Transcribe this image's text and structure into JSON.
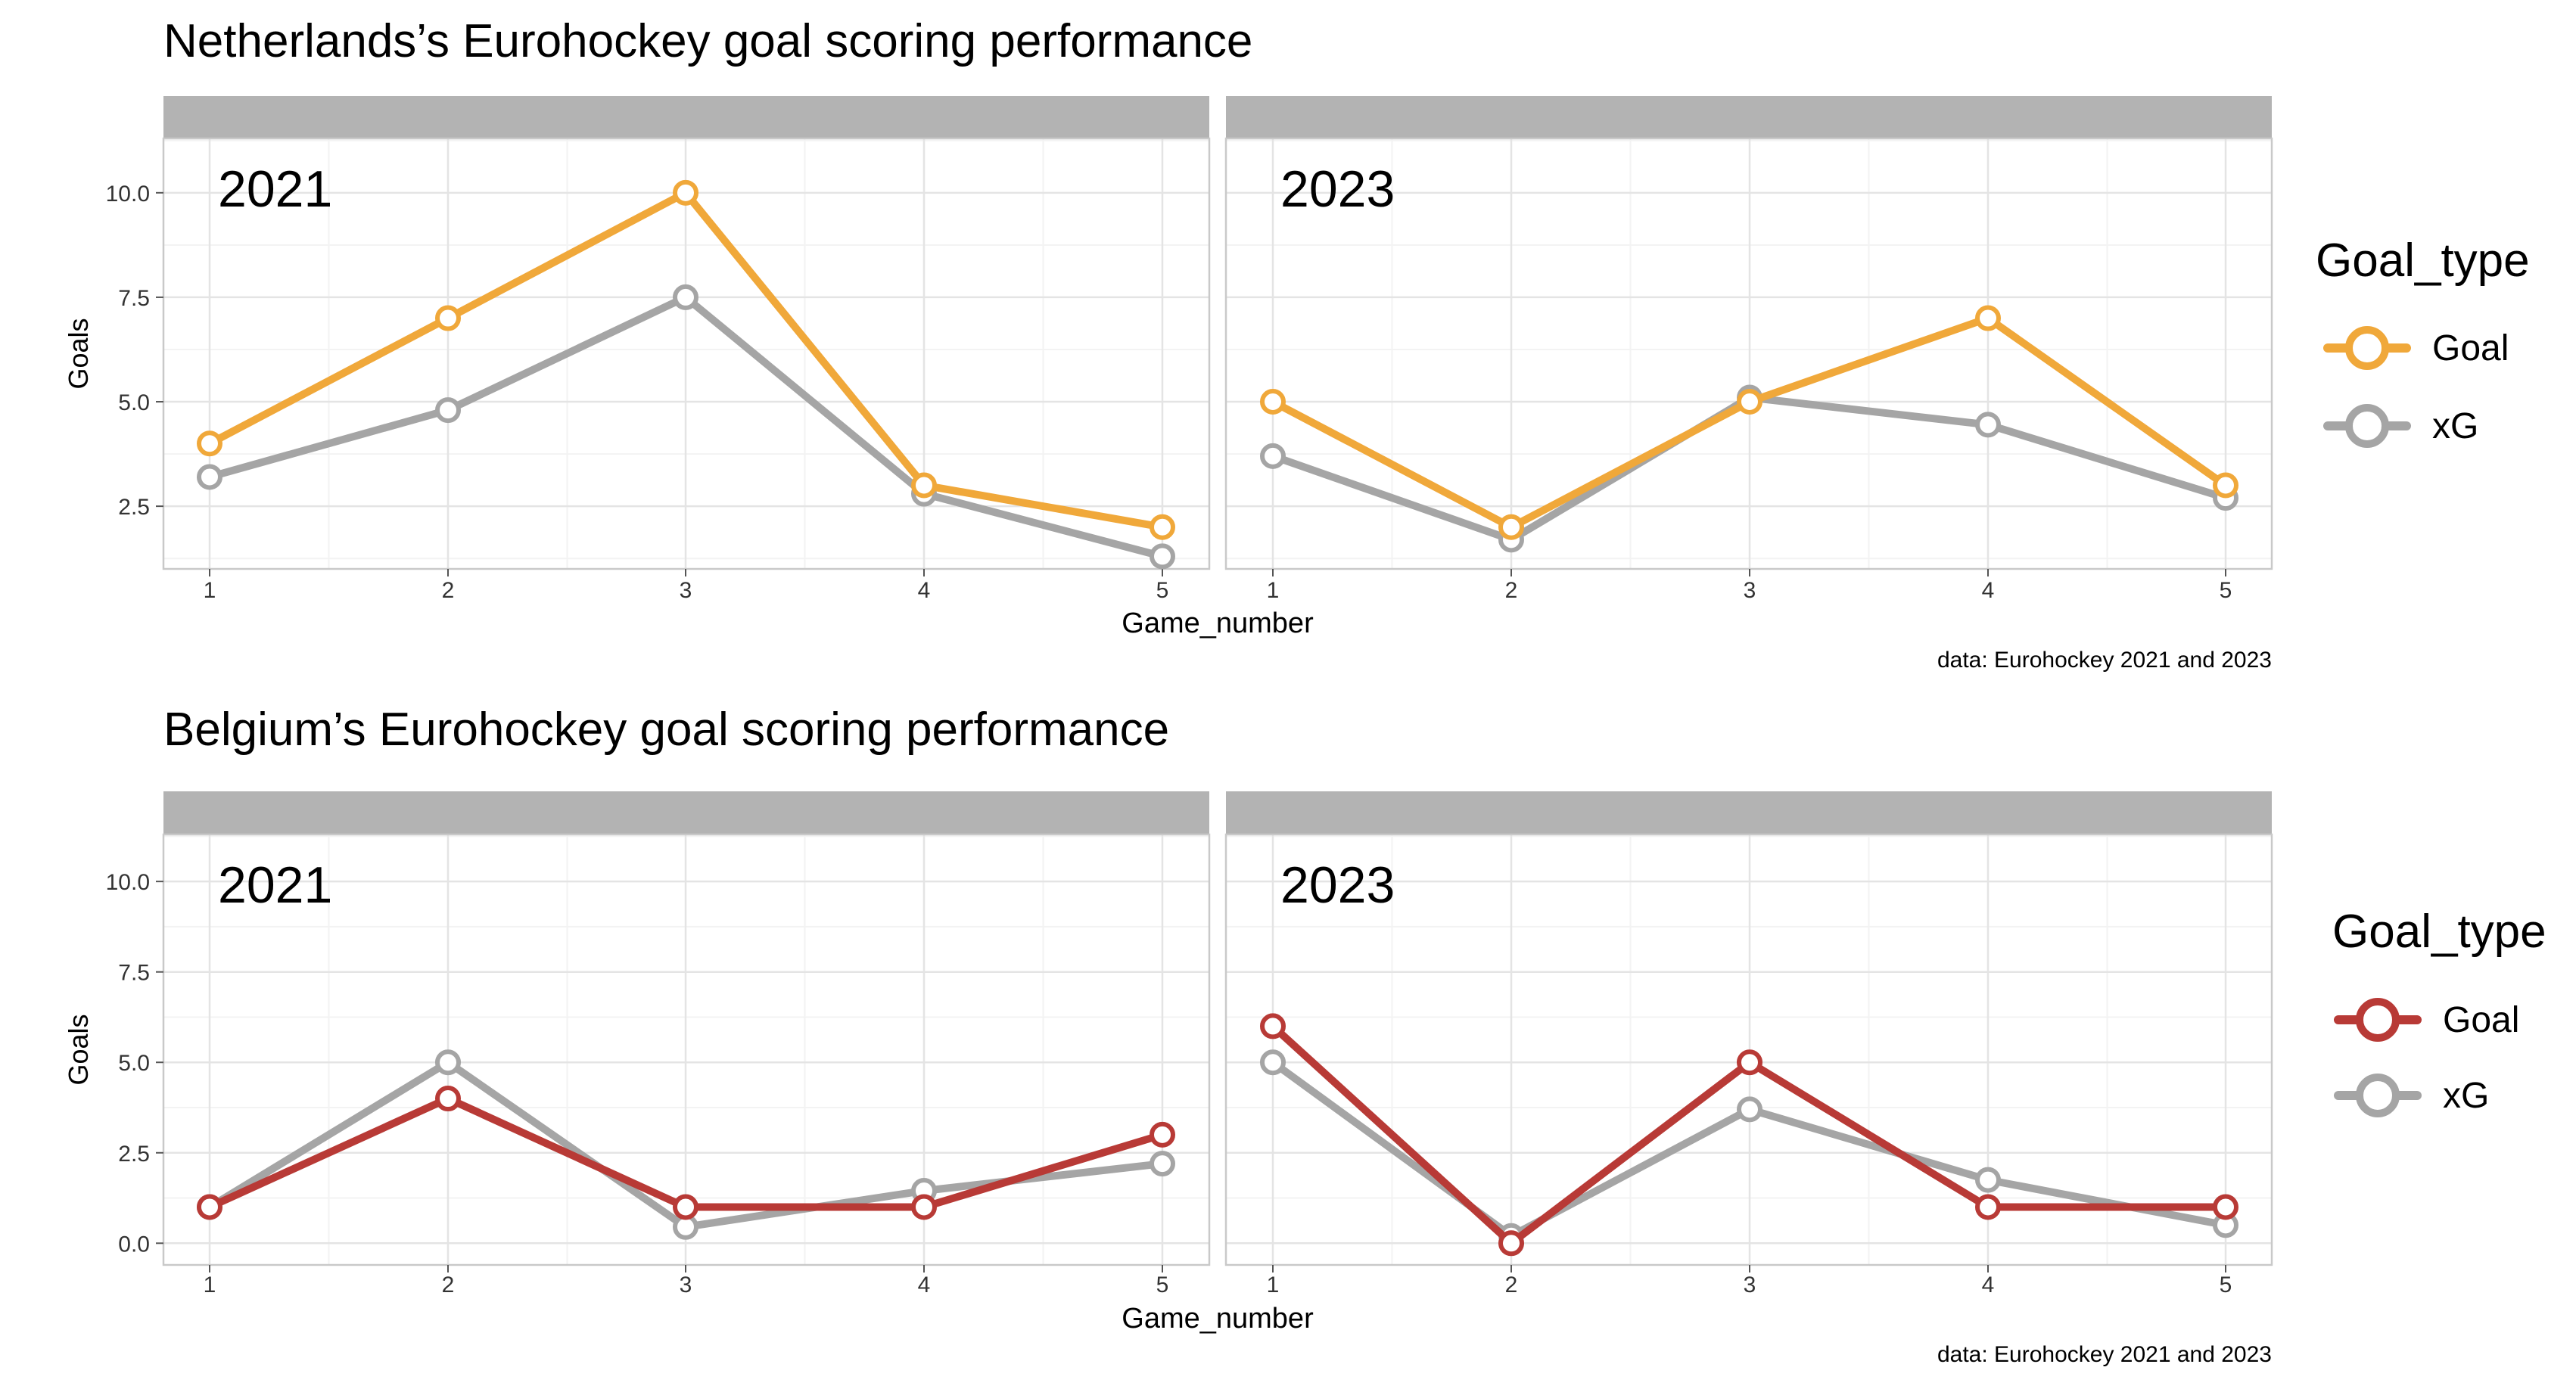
{
  "chart_data": [
    {
      "type": "line",
      "title": "Netherlands’s Eurohockey goal scoring performance",
      "xlabel": "Game_number",
      "ylabel": "Goals",
      "caption": "data: Eurohockey 2021 and 2023",
      "legend": {
        "title": "Goal_type",
        "position": "right"
      },
      "grid": true,
      "ylim": [
        1,
        11.3
      ],
      "y_ticks": [
        "2.5",
        "5.0",
        "7.5",
        "10.0"
      ],
      "x_ticks": [
        "1",
        "2",
        "3",
        "4",
        "5"
      ],
      "x": [
        1,
        2,
        3,
        4,
        5
      ],
      "panels": [
        {
          "label": "2021",
          "series": [
            {
              "name": "Goal",
              "color": "#F0A83A",
              "values": [
                4,
                7,
                10,
                3,
                2
              ]
            },
            {
              "name": "xG",
              "color": "#A5A5A5",
              "values": [
                3.2,
                4.8,
                7.5,
                2.8,
                1.3
              ]
            }
          ]
        },
        {
          "label": "2023",
          "series": [
            {
              "name": "Goal",
              "color": "#F0A83A",
              "values": [
                5,
                2,
                5,
                7,
                3
              ]
            },
            {
              "name": "xG",
              "color": "#A5A5A5",
              "values": [
                3.7,
                1.7,
                5.1,
                4.45,
                2.7
              ]
            }
          ]
        }
      ]
    },
    {
      "type": "line",
      "title": "Belgium’s Eurohockey goal scoring performance",
      "xlabel": "Game_number",
      "ylabel": "Goals",
      "caption": "data: Eurohockey 2021 and 2023",
      "legend": {
        "title": "Goal_type",
        "position": "right"
      },
      "grid": true,
      "ylim": [
        -0.6,
        11.3
      ],
      "y_ticks": [
        "0.0",
        "2.5",
        "5.0",
        "7.5",
        "10.0"
      ],
      "x_ticks": [
        "1",
        "2",
        "3",
        "4",
        "5"
      ],
      "x": [
        1,
        2,
        3,
        4,
        5
      ],
      "panels": [
        {
          "label": "2021",
          "series": [
            {
              "name": "Goal",
              "color": "#B83A36",
              "values": [
                1,
                4,
                1,
                1,
                3
              ]
            },
            {
              "name": "xG",
              "color": "#A5A5A5",
              "values": [
                1,
                5,
                0.45,
                1.45,
                2.2
              ]
            }
          ]
        },
        {
          "label": "2023",
          "series": [
            {
              "name": "Goal",
              "color": "#B83A36",
              "values": [
                6,
                0,
                5,
                1,
                1
              ]
            },
            {
              "name": "xG",
              "color": "#A5A5A5",
              "values": [
                5,
                0.2,
                3.7,
                1.75,
                0.5
              ]
            }
          ]
        }
      ]
    }
  ]
}
